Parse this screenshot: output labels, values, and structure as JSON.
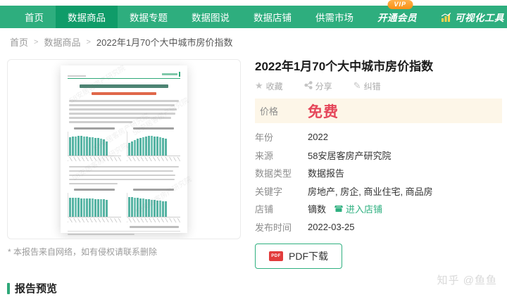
{
  "nav": {
    "vip_badge": "VIP",
    "items": [
      {
        "label": "首页",
        "name": "home",
        "selected": false,
        "vip": false,
        "chartIcon": false,
        "emph": false
      },
      {
        "label": "数据商品",
        "name": "data-products",
        "selected": true,
        "vip": false,
        "chartIcon": false,
        "emph": false
      },
      {
        "label": "数据专题",
        "name": "data-topics",
        "selected": false,
        "vip": false,
        "chartIcon": false,
        "emph": false
      },
      {
        "label": "数据图说",
        "name": "data-graphics",
        "selected": false,
        "vip": false,
        "chartIcon": false,
        "emph": false
      },
      {
        "label": "数据店铺",
        "name": "data-shops",
        "selected": false,
        "vip": false,
        "chartIcon": false,
        "emph": false
      },
      {
        "label": "供需市场",
        "name": "supply-demand-market",
        "selected": false,
        "vip": false,
        "chartIcon": false,
        "emph": false
      },
      {
        "label": "开通会员",
        "name": "open-membership",
        "selected": false,
        "vip": true,
        "chartIcon": false,
        "emph": true
      },
      {
        "label": "可视化工具",
        "name": "visualization-tools",
        "selected": false,
        "vip": false,
        "chartIcon": true,
        "emph": true
      }
    ]
  },
  "breadcrumb": {
    "separator": ">",
    "items": [
      "首页",
      "数据商品",
      "2022年1月70个大中城市房价指数"
    ]
  },
  "product": {
    "title": "2022年1月70个大中城市房价指数",
    "actions": {
      "favorite": "收藏",
      "share": "分享",
      "correct": "纠错"
    },
    "price": {
      "label": "价格",
      "value": "免费"
    },
    "details": [
      {
        "label": "年份",
        "value": "2022"
      },
      {
        "label": "来源",
        "value": "58安居客房产研究院"
      },
      {
        "label": "数据类型",
        "value": "数据报告"
      },
      {
        "label": "关键字",
        "value": "房地产, 房企, 商业住宅, 商品房"
      },
      {
        "label": "店铺",
        "value": "镝数",
        "link": "进入店铺"
      },
      {
        "label": "发布时间",
        "value": "2022-03-25"
      }
    ],
    "download_button": "PDF下载",
    "pdf_icon_text": "PDF"
  },
  "preview": {
    "disclaimer": "* 本报告来自网络，如有侵权请联系删除",
    "section_title": "报告预览",
    "watermark_text": "58安居客房产研究院",
    "chart_bars": [
      [
        26,
        27,
        27,
        28,
        28,
        27,
        27,
        26,
        26,
        25,
        25,
        24,
        23,
        20
      ],
      [
        18,
        20,
        22,
        24,
        25,
        26,
        27,
        28,
        28,
        27,
        27,
        26,
        25,
        24
      ],
      [
        27,
        27,
        27,
        27,
        26,
        26,
        26,
        26,
        26,
        25,
        25,
        25,
        25,
        24
      ],
      [
        28,
        28,
        27,
        27,
        26,
        26,
        25,
        25,
        24,
        24,
        23,
        23,
        22,
        22
      ]
    ]
  },
  "site_watermark": "知乎 @鱼鱼",
  "colors": {
    "nav_green": "#2eae7e",
    "nav_selected_green": "#0f9c69",
    "accent_green": "#2fb080",
    "price_bg": "#fdf6e8",
    "free_red": "#e5465a",
    "pdf_red": "#e23c3c",
    "vip_orange": "#f99016"
  }
}
